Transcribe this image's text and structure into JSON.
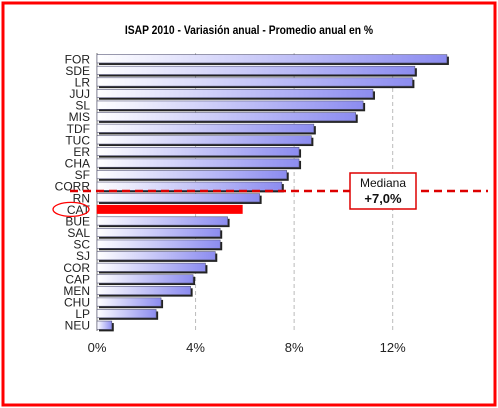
{
  "chart_data": {
    "type": "bar",
    "orientation": "horizontal",
    "title": "ISAP 2010 - Variasión anual - Promedio anual en %",
    "categories": [
      "FOR",
      "SDE",
      "LR",
      "JUJ",
      "SL",
      "MIS",
      "TDF",
      "TUC",
      "ER",
      "CHA",
      "SF",
      "CORR",
      "RN",
      "CAT",
      "BUE",
      "SAL",
      "SC",
      "SJ",
      "COR",
      "CAP",
      "MEN",
      "CHU",
      "LP",
      "NEU"
    ],
    "values": [
      14.2,
      12.9,
      12.8,
      11.2,
      10.8,
      10.5,
      8.8,
      8.7,
      8.2,
      8.2,
      7.7,
      7.5,
      6.6,
      5.9,
      5.3,
      5.0,
      5.0,
      4.8,
      4.4,
      3.9,
      3.8,
      2.6,
      2.4,
      0.6
    ],
    "highlight": "CAT",
    "highlight_color": "#ff0000",
    "bar_color_light": "#ffffff",
    "bar_color_dark": "#8c8cf0",
    "xticks": [
      "0%",
      "4%",
      "8%",
      "12%"
    ],
    "xtick_values": [
      0,
      4,
      8,
      12
    ],
    "xlim": [
      0,
      15.3
    ],
    "grid": "vertical-dashed",
    "median": {
      "value": 7.0,
      "label": "Mediana",
      "value_label": "+7,0%"
    },
    "frame_color": "#ff0000"
  }
}
